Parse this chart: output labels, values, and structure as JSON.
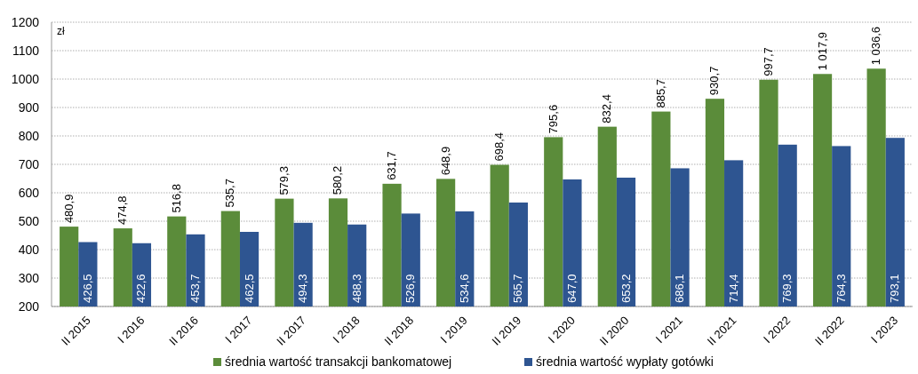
{
  "chart_data": {
    "type": "bar",
    "ylabel": "zł",
    "categories": [
      "II 2015",
      "I 2016",
      "II 2016",
      "I 2017",
      "II 2017",
      "I 2018",
      "II 2018",
      "I 2019",
      "II 2019",
      "I 2020",
      "II 2020",
      "I 2021",
      "II 2021",
      "I 2022",
      "II 2022",
      "I 2023"
    ],
    "series": [
      {
        "name": "średnia wartość transakcji bankomatowej",
        "color": "#5b8c3a",
        "values": [
          480.9,
          474.8,
          516.8,
          535.7,
          579.3,
          580.2,
          631.7,
          648.9,
          698.4,
          795.6,
          832.4,
          885.7,
          930.7,
          997.7,
          1017.9,
          1036.6
        ],
        "value_labels": [
          "480,9",
          "474,8",
          "516,8",
          "535,7",
          "579,3",
          "580,2",
          "631,7",
          "648,9",
          "698,4",
          "795,6",
          "832,4",
          "885,7",
          "930,7",
          "997,7",
          "1 017,9",
          "1 036,6"
        ]
      },
      {
        "name": "średnia wartość wypłaty gotówki",
        "color": "#2e5591",
        "values": [
          426.5,
          422.6,
          453.7,
          462.5,
          494.3,
          488.3,
          526.9,
          534.6,
          565.7,
          647.0,
          653.2,
          686.1,
          714.4,
          769.3,
          764.3,
          793.1
        ],
        "value_labels": [
          "426,5",
          "422,6",
          "453,7",
          "462,5",
          "494,3",
          "488,3",
          "526,9",
          "534,6",
          "565,7",
          "647,0",
          "653,2",
          "686,1",
          "714,4",
          "769,3",
          "764,3",
          "793,1"
        ]
      }
    ],
    "ylim": [
      200,
      1200
    ],
    "yticks": [
      200,
      300,
      400,
      500,
      600,
      700,
      800,
      900,
      1000,
      1100,
      1200
    ],
    "grid": "y",
    "legend": "bottom"
  }
}
